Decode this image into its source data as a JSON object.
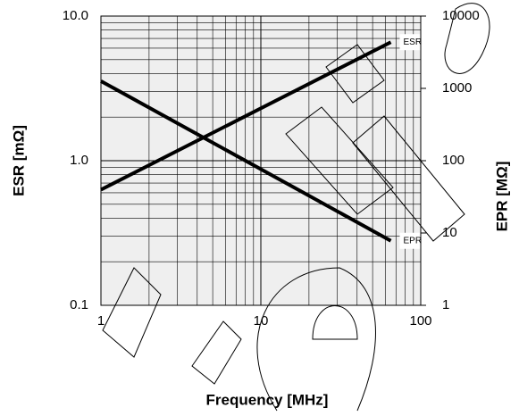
{
  "chart_data": {
    "type": "line",
    "x_label": "Frequency [MHz]",
    "y_label": "ESR [mΩ]",
    "y2_label": "EPR [MΩ]",
    "x": [
      1,
      65
    ],
    "series": [
      {
        "name": "ESR",
        "color": "#000000",
        "values": [
          0.63,
          6.6
        ]
      },
      {
        "name": "EPR",
        "color": "#000000",
        "values": [
          1260,
          7.8
        ],
        "axis": "y2"
      }
    ],
    "xlim": [
      1,
      100
    ],
    "xticks": [
      1,
      10,
      100
    ],
    "ylim": [
      0.1,
      10
    ],
    "yticks": [
      0.1,
      {
        "value": 1,
        "label": "1.0"
      },
      {
        "value": 10,
        "label": "10.0"
      }
    ],
    "y2lim": [
      1,
      10000
    ],
    "y2ticks": [
      1,
      10,
      100,
      1000,
      10000
    ],
    "log_x": true,
    "log_y": true,
    "grid": true
  }
}
